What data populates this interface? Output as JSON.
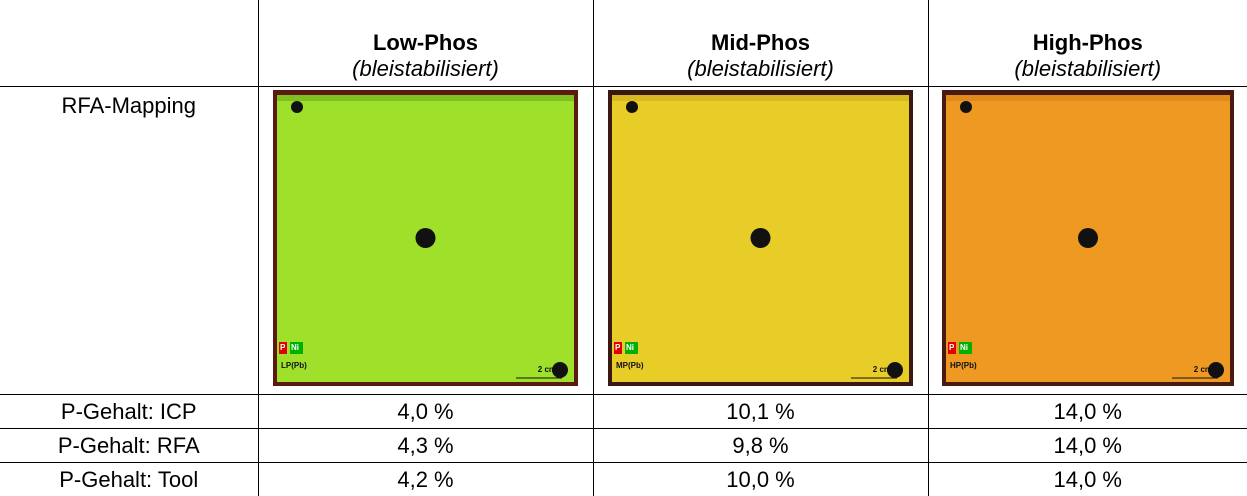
{
  "table": {
    "columns": [
      {
        "name": "Low-Phos",
        "note": "(bleistabilisiert)"
      },
      {
        "name": "Mid-Phos",
        "note": "(bleistabilisiert)"
      },
      {
        "name": "High-Phos",
        "note": "(bleistabilisiert)"
      }
    ],
    "mapping_row": {
      "label": "RFA-Mapping",
      "maps": [
        {
          "sample": "LP(Pb)",
          "legend": [
            "P",
            "Ni"
          ],
          "scale": "2 cm"
        },
        {
          "sample": "MP(Pb)",
          "legend": [
            "P",
            "Ni"
          ],
          "scale": "2 cm"
        },
        {
          "sample": "HP(Pb)",
          "legend": [
            "P",
            "Ni"
          ],
          "scale": "2 cm"
        }
      ]
    },
    "rows": [
      [
        "P-Gehalt: ICP",
        "4,0 %",
        "10,1 %",
        "14,0 %"
      ],
      [
        "P-Gehalt: RFA",
        "4,3 %",
        "9,8 %",
        "14,0 %"
      ],
      [
        "P-Gehalt: Tool",
        "4,2 %",
        "10,0 %",
        "14,0 %"
      ]
    ]
  }
}
